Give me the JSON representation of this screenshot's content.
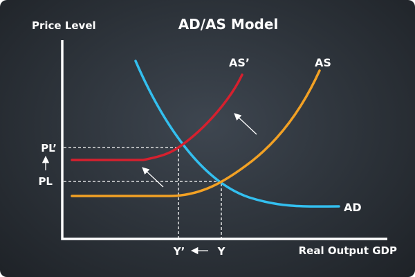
{
  "title": "AD/AS Model",
  "axis": {
    "y_label": "Price Level",
    "x_label": "Real Output GDP"
  },
  "curves": {
    "ad": {
      "label": "AD",
      "color": "#33bfef"
    },
    "as": {
      "label": "AS",
      "color": "#f2a124"
    },
    "as_prime": {
      "label": "AS’",
      "color": "#d6202e"
    }
  },
  "ticks": {
    "pl": "PL",
    "pl_prime": "PL’",
    "y": "Y",
    "y_prime": "Y’"
  },
  "colors": {
    "background": "#2f353c",
    "text": "#ffffff"
  }
}
